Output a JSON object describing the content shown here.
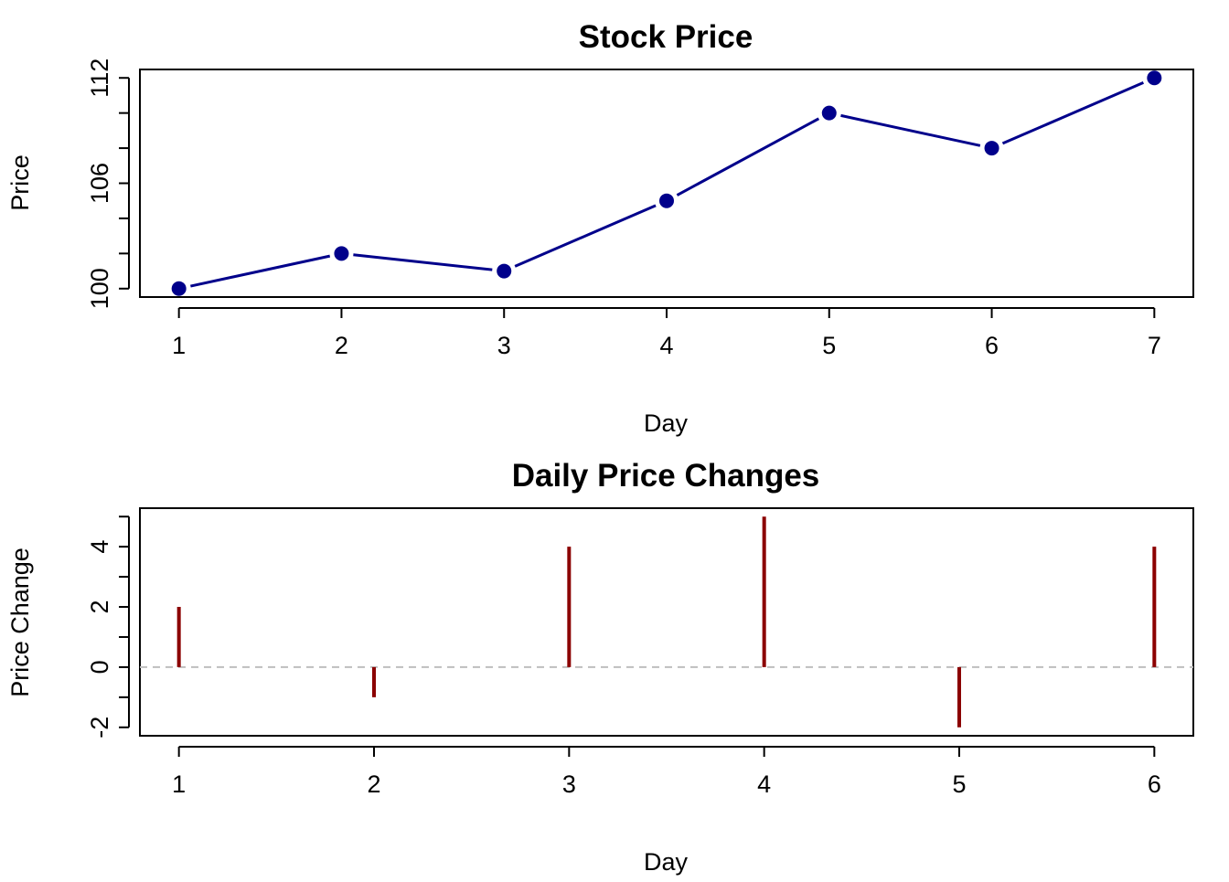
{
  "chart_data": [
    {
      "type": "line",
      "title": "Stock Price",
      "xlabel": "Day",
      "ylabel": "Price",
      "x": [
        1,
        2,
        3,
        4,
        5,
        6,
        7
      ],
      "values": [
        100,
        102,
        101,
        105,
        110,
        108,
        112
      ],
      "xlim": [
        0.76,
        7.24
      ],
      "ylim": [
        99.52,
        112.48
      ],
      "x_ticks": [
        1,
        2,
        3,
        4,
        5,
        6,
        7
      ],
      "y_ticks_major": [
        100,
        106,
        112
      ],
      "y_ticks_minor": [
        100,
        102,
        104,
        106,
        108,
        110,
        112
      ],
      "color": "#00008B",
      "line_style": "solid with gaps at markers",
      "markers": "filled-circle",
      "grid": false,
      "legend": "none"
    },
    {
      "type": "bar",
      "style": "histogram-lines",
      "title": "Daily Price Changes",
      "xlabel": "Day",
      "ylabel": "Price Change",
      "x": [
        1,
        2,
        3,
        4,
        5,
        6
      ],
      "values": [
        2,
        -1,
        4,
        5,
        -2,
        4
      ],
      "xlim": [
        0.8,
        6.2
      ],
      "ylim": [
        -2.28,
        5.28
      ],
      "x_ticks": [
        1,
        2,
        3,
        4,
        5,
        6
      ],
      "y_ticks_major": [
        -2,
        0,
        2,
        4
      ],
      "y_ticks_minor": [
        -2,
        -1,
        0,
        1,
        2,
        3,
        4,
        5
      ],
      "color": "#8B0000",
      "reference_line": {
        "y": 0,
        "style": "dashed",
        "color": "#BEBEBE"
      },
      "grid": false,
      "legend": "none"
    }
  ]
}
